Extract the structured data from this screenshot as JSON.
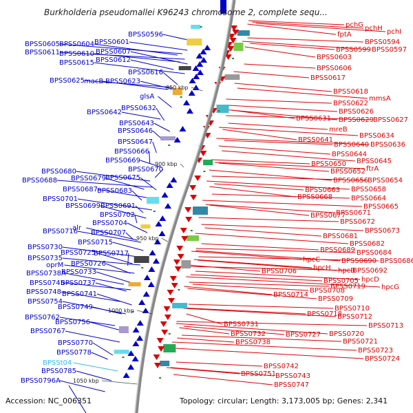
{
  "title": "Burkholderia pseudomallei K96243 chromosome 2, complete sequ...",
  "footer": {
    "accession": "Accession: NC_006351",
    "topology": "Topology: circular; Length: 3,173,005 bp; Genes: 2,341"
  },
  "colors": {
    "forward_strand": "#0000cc",
    "reverse_strand": "#dd0000",
    "rna_gene": "#33bbee",
    "backbone": "#888888",
    "tick": "#228822"
  },
  "kbp_marks": [
    "850 kbp",
    "900 kbp",
    "950 kbp",
    "1000 kbp",
    "1050 kbp"
  ],
  "left_labels": [
    {
      "text": "BPSS0596"
    },
    {
      "text": "BPSS0601"
    },
    {
      "text": "BPSS0605"
    },
    {
      "text": "BPSS0604"
    },
    {
      "text": "BPSS0607"
    },
    {
      "text": "BPSS0611"
    },
    {
      "text": "BPSS0610"
    },
    {
      "text": "BPSS0612"
    },
    {
      "text": "BPSS0615"
    },
    {
      "text": "BPSS0616"
    },
    {
      "text": "BPSS0625"
    },
    {
      "text": "macB"
    },
    {
      "text": "BPSS0623"
    },
    {
      "text": "glsA"
    },
    {
      "text": "BPSS0632"
    },
    {
      "text": "BPSS0642"
    },
    {
      "text": "BPSS0643"
    },
    {
      "text": "BPSS0646"
    },
    {
      "text": "BPSS0647"
    },
    {
      "text": "BPSS0666"
    },
    {
      "text": "BPSS0669"
    },
    {
      "text": "BPSS0670"
    },
    {
      "text": "BPSS0680"
    },
    {
      "text": "BPSS0679"
    },
    {
      "text": "BPSS0675"
    },
    {
      "text": "BPSS0688"
    },
    {
      "text": "BPSS0687"
    },
    {
      "text": "BPSS0683"
    },
    {
      "text": "BPSS0701"
    },
    {
      "text": "BPSS0699"
    },
    {
      "text": "BPSS0691"
    },
    {
      "text": "BPSS0702"
    },
    {
      "text": "BPSS0704"
    },
    {
      "text": "BPSS0716"
    },
    {
      "text": "alr"
    },
    {
      "text": "BPSS0707"
    },
    {
      "text": "BPSS0715"
    },
    {
      "text": "BPSS0730"
    },
    {
      "text": "BPSS0725"
    },
    {
      "text": "BPSS0717"
    },
    {
      "text": "BPSS0735"
    },
    {
      "text": "oprM"
    },
    {
      "text": "BPSS0726"
    },
    {
      "text": "BPSS0738A"
    },
    {
      "text": "BPSS0733"
    },
    {
      "text": "BPSS0745"
    },
    {
      "text": "BPSS0737"
    },
    {
      "text": "BPSS0748"
    },
    {
      "text": "BPSS0741"
    },
    {
      "text": "BPSS0754"
    },
    {
      "text": "BPSS0749"
    },
    {
      "text": "BPSS0762"
    },
    {
      "text": "BPSS0756"
    },
    {
      "text": "BPSS0767"
    },
    {
      "text": "BPSS0770"
    },
    {
      "text": "BPSS0778"
    },
    {
      "text": "BPSSt04",
      "rna": true
    },
    {
      "text": "BPSS0785"
    },
    {
      "text": "BPSS0796A"
    }
  ],
  "right_labels": [
    {
      "text": "pchG"
    },
    {
      "text": "pchH"
    },
    {
      "text": "pchI"
    },
    {
      "text": "fptA"
    },
    {
      "text": "BPSS0594"
    },
    {
      "text": "BPSS0599"
    },
    {
      "text": "BPSS0597"
    },
    {
      "text": "BPSS0603"
    },
    {
      "text": "BPSS0606"
    },
    {
      "text": "BPSS0617"
    },
    {
      "text": "BPSS0618"
    },
    {
      "text": "mmsA"
    },
    {
      "text": "BPSS0622"
    },
    {
      "text": "BPSS0626"
    },
    {
      "text": "BPSS0631"
    },
    {
      "text": "BPSS0629"
    },
    {
      "text": "BPSS0627"
    },
    {
      "text": "mreB"
    },
    {
      "text": "BPSS0634"
    },
    {
      "text": "BPSS0641"
    },
    {
      "text": "BPSS0640"
    },
    {
      "text": "BPSS0636"
    },
    {
      "text": "BPSS0644"
    },
    {
      "text": "BPSS0645"
    },
    {
      "text": "BPSS0650"
    },
    {
      "text": "ftrA"
    },
    {
      "text": "BPSS0652"
    },
    {
      "text": "BPSS0656"
    },
    {
      "text": "BPSS0654"
    },
    {
      "text": "BPSS0663"
    },
    {
      "text": "BPSS0658"
    },
    {
      "text": "BPSS0668"
    },
    {
      "text": "BPSS0664"
    },
    {
      "text": "BPSS0665"
    },
    {
      "text": "BPSS0671"
    },
    {
      "text": "BPSS0677"
    },
    {
      "text": "BPSS0672"
    },
    {
      "text": "BPSS0673"
    },
    {
      "text": "BPSS0681"
    },
    {
      "text": "BPSS0682"
    },
    {
      "text": "BPSS0684"
    },
    {
      "text": "BPSS0689"
    },
    {
      "text": "hpcC"
    },
    {
      "text": "BPSS0690"
    },
    {
      "text": "BPSS0686"
    },
    {
      "text": "BPSS0706"
    },
    {
      "text": "hpcH"
    },
    {
      "text": "hpcB"
    },
    {
      "text": "BPSS0692"
    },
    {
      "text": "BPSS0705"
    },
    {
      "text": "hpcD"
    },
    {
      "text": "hpcG"
    },
    {
      "text": "BPSS0719"
    },
    {
      "text": "BPSS0708"
    },
    {
      "text": "BPSS0714"
    },
    {
      "text": "BPSS0709"
    },
    {
      "text": "BPSS0710"
    },
    {
      "text": "BPSS0718"
    },
    {
      "text": "BPSS0712"
    },
    {
      "text": "BPSS0731"
    },
    {
      "text": "BPSS0713"
    },
    {
      "text": "BPSS0732"
    },
    {
      "text": "BPSS0727"
    },
    {
      "text": "BPSS0720"
    },
    {
      "text": "BPSS0738"
    },
    {
      "text": "BPSS0721"
    },
    {
      "text": "BPSS0723"
    },
    {
      "text": "BPSS0724"
    },
    {
      "text": "BPSS0742"
    },
    {
      "text": "BPSS0751"
    },
    {
      "text": "BPSS0743"
    },
    {
      "text": "BPSS0747"
    }
  ]
}
